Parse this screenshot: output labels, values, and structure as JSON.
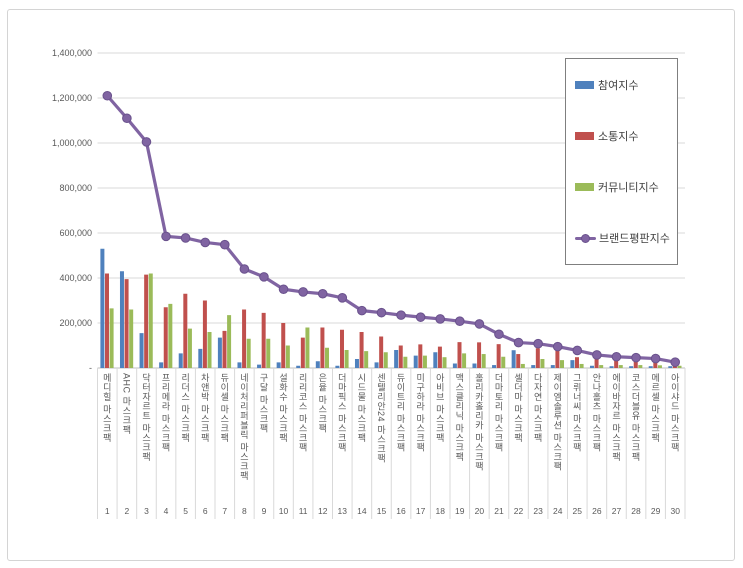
{
  "chart_data": {
    "type": "bar+line",
    "title": "",
    "categories": [
      "메디힐 마스크팩",
      "AHC 마스크팩",
      "닥터자르트 마스크팩",
      "프리메라 마스크팩",
      "리더스 마스크팩",
      "차앤박 마스크팩",
      "듀이셀 마스크팩",
      "네이처리퍼블릭 마스크팩",
      "구달 마스크팩",
      "설화수 마스크팩",
      "리리코스 마스크팩",
      "은율 마스크팩",
      "더마픽스 마스크팩",
      "시드물 마스크팩",
      "센텔리안24 마스크팩",
      "듀이트리 마스크팩",
      "미구하라 마스크팩",
      "아비브 마스크팩",
      "맥스클리닉 마스크팩",
      "홀리카홀리카 마스크팩",
      "더마토리 마스크팩",
      "셀더마 마스크팩",
      "다자연 마스크팩",
      "제이엠솔루션 마스크팩",
      "그뤼너씨 마스크팩",
      "안나홀츠 마스크팩",
      "에이바자르 마스크팩",
      "코스더블유 마스크팩",
      "메르셀 마스크팩",
      "아이샤드 마스크팩"
    ],
    "ranks": [
      "1",
      "2",
      "3",
      "4",
      "5",
      "6",
      "7",
      "8",
      "9",
      "10",
      "11",
      "12",
      "13",
      "14",
      "15",
      "16",
      "17",
      "18",
      "19",
      "20",
      "21",
      "22",
      "23",
      "24",
      "25",
      "26",
      "27",
      "28",
      "29",
      "30"
    ],
    "series": [
      {
        "name": "참여지수",
        "type": "bar",
        "color": "#4f81bd",
        "values": [
          530000,
          430000,
          155000,
          25000,
          65000,
          85000,
          135000,
          25000,
          15000,
          25000,
          10000,
          30000,
          10000,
          40000,
          25000,
          80000,
          55000,
          70000,
          20000,
          20000,
          13000,
          79000,
          13000,
          13000,
          35000,
          10000,
          8000,
          8000,
          8000,
          8000
        ]
      },
      {
        "name": "소통지수",
        "type": "bar",
        "color": "#c0504d",
        "values": [
          420000,
          395000,
          415000,
          270000,
          330000,
          300000,
          165000,
          260000,
          245000,
          200000,
          135000,
          180000,
          170000,
          160000,
          140000,
          100000,
          105000,
          95000,
          115000,
          114000,
          106000,
          62000,
          88000,
          79000,
          48000,
          53000,
          48000,
          44000,
          40000,
          35000
        ]
      },
      {
        "name": "커뮤니티지수",
        "type": "bar",
        "color": "#9bbb59",
        "values": [
          265000,
          260000,
          420000,
          285000,
          175000,
          160000,
          235000,
          130000,
          130000,
          100000,
          180000,
          90000,
          80000,
          75000,
          70000,
          50000,
          55000,
          48000,
          65000,
          62000,
          50000,
          18000,
          40000,
          35000,
          18000,
          13000,
          13000,
          13000,
          12000,
          10000
        ]
      },
      {
        "name": "브랜드평판지수",
        "type": "line",
        "color": "#8064a2",
        "marker_stroke": "#69518c",
        "values": [
          1210000,
          1110000,
          1005000,
          585000,
          578000,
          558000,
          548000,
          440000,
          405000,
          350000,
          338000,
          330000,
          312000,
          255000,
          246000,
          235000,
          226000,
          218000,
          208000,
          196000,
          150000,
          113000,
          108000,
          95000,
          78000,
          58000,
          50000,
          46000,
          42000,
          26000
        ]
      }
    ],
    "y_axis": {
      "min": 0,
      "max": 1400000,
      "step": 200000,
      "ticks": [
        {
          "label": "1,400,000",
          "value": 1400000
        },
        {
          "label": "1,200,000",
          "value": 1200000
        },
        {
          "label": "1,000,000",
          "value": 1000000
        },
        {
          "label": "800,000",
          "value": 800000
        },
        {
          "label": "600,000",
          "value": 600000
        },
        {
          "label": "400,000",
          "value": 400000
        },
        {
          "label": "200,000",
          "value": 200000
        },
        {
          "label": "-",
          "value": 0
        }
      ]
    },
    "grid": true,
    "legend_position": "top-right",
    "colors": {
      "gridline": "#d9d9d9",
      "baseline": "#bfbfbf",
      "axis_text": "#595959",
      "frame_border": "#d4d4d4",
      "legend_border": "#7f7f7f"
    }
  }
}
